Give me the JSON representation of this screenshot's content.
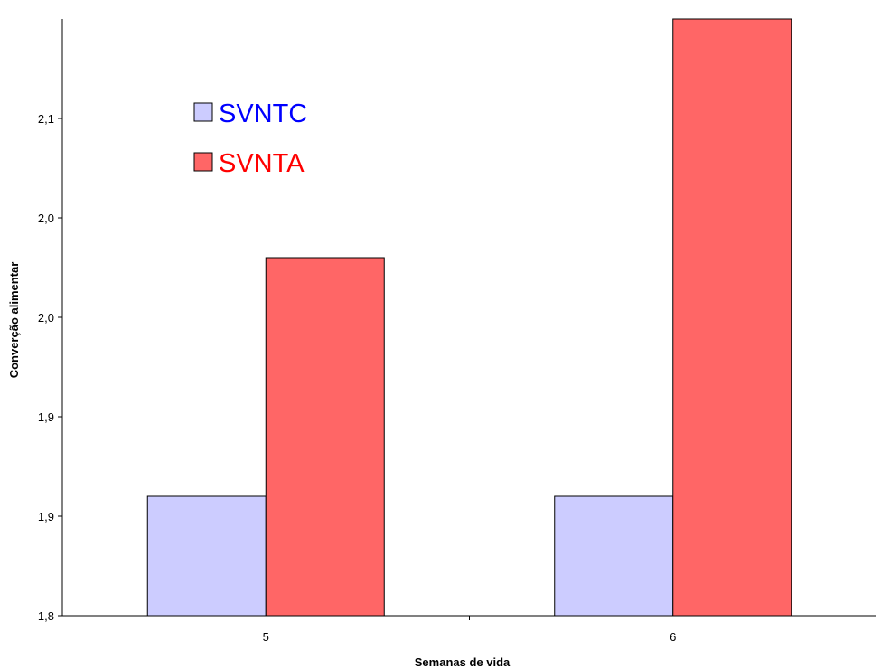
{
  "chart_data": {
    "type": "bar",
    "title": "",
    "xlabel": "Semanas de vida",
    "ylabel": "Converção alimentar",
    "categories": [
      "5",
      "6"
    ],
    "series": [
      {
        "name": "SVNTC",
        "values": [
          1.86,
          1.86
        ],
        "color": "#ccccff",
        "legend_text_color": "#0000ff"
      },
      {
        "name": "SVNTA",
        "values": [
          1.98,
          2.1
        ],
        "color": "#ff6666",
        "legend_text_color": "#ff0000"
      }
    ],
    "ylim": [
      1.8,
      2.1
    ],
    "yticks": [
      1.8,
      1.85,
      1.9,
      1.95,
      2.0,
      2.05
    ],
    "ytick_labels": [
      "1,8",
      "1,9",
      "1,9",
      "2,0",
      "2,0",
      "2,1"
    ],
    "grid": false,
    "legend_position": "top-left"
  }
}
